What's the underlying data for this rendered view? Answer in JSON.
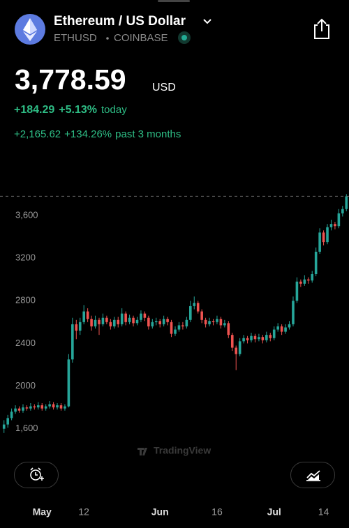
{
  "header": {
    "title": "Ethereum / US Dollar",
    "symbol": "ETHUSD",
    "exchange": "COINBASE",
    "price": "3,778.59",
    "currency": "USD",
    "change_today": "+184.29",
    "change_pct_today": "+5.13%",
    "today_label": "today",
    "change_period": "+2,165.62",
    "change_pct_period": "+134.26%",
    "period_label": "past 3 months"
  },
  "watermark": "TradingView",
  "chart_data": {
    "type": "candlestick",
    "up_color": "#26a69a",
    "down_color": "#ef5350",
    "open": [
      1600,
      1640,
      1700,
      1760,
      1790,
      1770,
      1800,
      1790,
      1810,
      1800,
      1820,
      1790,
      1810,
      1830,
      1800,
      1820,
      1790,
      1810,
      2250,
      2580,
      2520,
      2600,
      2700,
      2630,
      2560,
      2620,
      2580,
      2640,
      2600,
      2560,
      2620,
      2580,
      2680,
      2600,
      2640,
      2590,
      2620,
      2680,
      2640,
      2560,
      2600,
      2610,
      2580,
      2630,
      2600,
      2490,
      2530,
      2570,
      2560,
      2620,
      2750,
      2780,
      2700,
      2620,
      2580,
      2610,
      2600,
      2630,
      2570,
      2590,
      2480,
      2360,
      2300,
      2420,
      2450,
      2430,
      2470,
      2440,
      2460,
      2430,
      2480,
      2450,
      2530,
      2560,
      2510,
      2550,
      2580,
      2800,
      2980,
      2960,
      3000,
      2990,
      3050,
      3260,
      3440,
      3350,
      3490,
      3520,
      3500,
      3620,
      3660
    ],
    "high": [
      1680,
      1730,
      1790,
      1820,
      1810,
      1830,
      1820,
      1840,
      1830,
      1850,
      1840,
      1830,
      1860,
      1850,
      1840,
      1840,
      1830,
      2300,
      2640,
      2620,
      2640,
      2760,
      2730,
      2660,
      2660,
      2640,
      2680,
      2660,
      2630,
      2650,
      2650,
      2730,
      2700,
      2670,
      2660,
      2650,
      2710,
      2700,
      2660,
      2630,
      2640,
      2630,
      2660,
      2650,
      2620,
      2560,
      2600,
      2600,
      2650,
      2800,
      2840,
      2800,
      2720,
      2640,
      2640,
      2630,
      2660,
      2650,
      2620,
      2610,
      2500,
      2380,
      2450,
      2480,
      2470,
      2500,
      2490,
      2490,
      2480,
      2510,
      2500,
      2560,
      2590,
      2580,
      2580,
      2610,
      2840,
      3020,
      3000,
      3040,
      3020,
      3080,
      3300,
      3480,
      3460,
      3520,
      3560,
      3540,
      3660,
      3690,
      3800
    ],
    "low": [
      1560,
      1610,
      1680,
      1740,
      1750,
      1750,
      1770,
      1770,
      1780,
      1780,
      1770,
      1770,
      1790,
      1780,
      1780,
      1770,
      1770,
      1800,
      2220,
      2440,
      2480,
      2580,
      2600,
      2520,
      2540,
      2480,
      2560,
      2580,
      2530,
      2540,
      2550,
      2560,
      2570,
      2580,
      2560,
      2570,
      2600,
      2610,
      2530,
      2540,
      2570,
      2550,
      2560,
      2570,
      2460,
      2470,
      2510,
      2530,
      2540,
      2600,
      2720,
      2680,
      2590,
      2550,
      2560,
      2570,
      2580,
      2540,
      2550,
      2450,
      2330,
      2150,
      2280,
      2400,
      2400,
      2410,
      2410,
      2420,
      2400,
      2410,
      2420,
      2430,
      2510,
      2480,
      2490,
      2530,
      2560,
      2780,
      2930,
      2940,
      2960,
      2970,
      3030,
      3240,
      3320,
      3330,
      3460,
      3470,
      3480,
      3590,
      3640
    ],
    "close": [
      1640,
      1700,
      1760,
      1790,
      1770,
      1800,
      1790,
      1810,
      1800,
      1820,
      1790,
      1810,
      1830,
      1800,
      1820,
      1790,
      1810,
      2250,
      2580,
      2520,
      2600,
      2700,
      2630,
      2560,
      2620,
      2580,
      2640,
      2600,
      2560,
      2620,
      2580,
      2680,
      2600,
      2640,
      2590,
      2620,
      2680,
      2640,
      2560,
      2600,
      2610,
      2580,
      2630,
      2600,
      2490,
      2530,
      2570,
      2560,
      2620,
      2750,
      2780,
      2700,
      2620,
      2580,
      2610,
      2600,
      2630,
      2570,
      2590,
      2480,
      2360,
      2300,
      2420,
      2450,
      2430,
      2470,
      2440,
      2460,
      2430,
      2480,
      2450,
      2530,
      2560,
      2510,
      2550,
      2580,
      2800,
      2980,
      2960,
      3000,
      2990,
      3050,
      3260,
      3440,
      3350,
      3490,
      3520,
      3500,
      3620,
      3660,
      3780
    ],
    "xlim": [
      -0.5,
      90.5
    ],
    "xticks": [
      {
        "value": 10,
        "label": "May"
      },
      {
        "value": 21,
        "label": "12"
      },
      {
        "value": 41,
        "label": "Jun"
      },
      {
        "value": 56,
        "label": "16"
      },
      {
        "value": 71,
        "label": "Jul"
      },
      {
        "value": 84,
        "label": "14"
      }
    ],
    "ylim": [
      1500,
      3920
    ],
    "yticks": [
      {
        "value": 1600,
        "label": "1,600"
      },
      2000,
      2400,
      2800,
      3200,
      {
        "value": 3600,
        "label": "3,600"
      }
    ],
    "ytick_labels": [
      "1,600",
      "2,000",
      "2,400",
      "2,800",
      "3,200",
      "3,600"
    ]
  }
}
